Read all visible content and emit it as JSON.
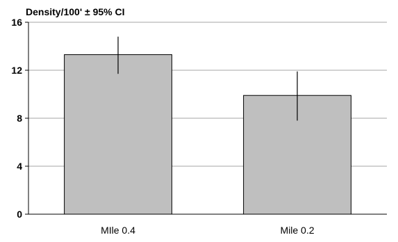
{
  "chart_data": {
    "type": "bar",
    "title": "Density/100' ± 95% CI",
    "categories": [
      "MIle 0.4",
      "Mile 0.2"
    ],
    "values": [
      13.3,
      9.9
    ],
    "ci_low": [
      11.7,
      7.8
    ],
    "ci_high": [
      14.8,
      11.9
    ],
    "ylim": [
      0,
      16
    ],
    "yticks": [
      "0",
      "4",
      "8",
      "12",
      "16"
    ],
    "grid": true,
    "colors": {
      "bar": "#bfbfbf",
      "bar_edge": "#000000",
      "grid": "#a6a6a6",
      "axis": "#000000"
    }
  }
}
